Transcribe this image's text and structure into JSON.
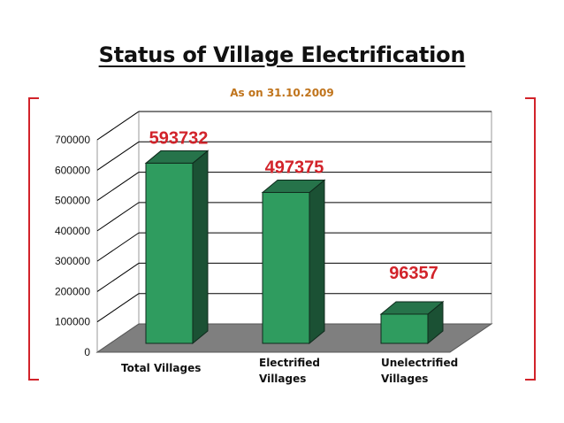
{
  "chart_data": {
    "type": "bar",
    "title": "Status of Village Electrification",
    "subtitle": "As on 31.10.2009",
    "categories": [
      [
        "Total Villages"
      ],
      [
        "Electrified",
        "Villages"
      ],
      [
        "Unelectrified",
        "Villages"
      ]
    ],
    "values": [
      593732,
      497375,
      96357
    ],
    "data_labels": [
      "593732",
      "497375",
      "96357"
    ],
    "ylim": [
      0,
      700000
    ],
    "yticks": [
      0,
      100000,
      200000,
      300000,
      400000,
      500000,
      600000,
      700000
    ],
    "ytick_labels": [
      "0",
      "100000",
      "200000",
      "300000",
      "400000",
      "500000",
      "600000",
      "700000"
    ],
    "grid": true,
    "legend": "none",
    "colors": {
      "bar_front": "#2f9c5f",
      "bar_side": "#1b5134",
      "bar_top": "#26734a",
      "floor": "#7f7f7f",
      "label": "#d2232a",
      "subtitle": "#c0741c",
      "bracket": "#d2232a"
    }
  }
}
